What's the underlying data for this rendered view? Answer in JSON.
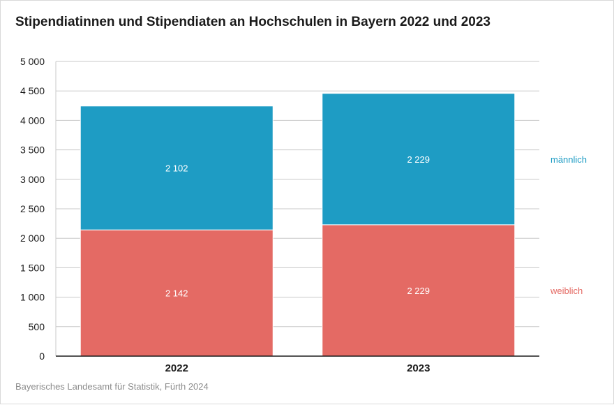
{
  "title": "Stipendiatinnen und Stipendiaten an Hochschulen in Bayern 2022 und 2023",
  "source": "Bayerisches Landesamt für Statistik, Fürth 2024",
  "colors": {
    "weiblich": "#e46a64",
    "maennlich": "#1e9cc4",
    "grid": "#c8c8c8",
    "axis": "#1a1a1a"
  },
  "chart_data": {
    "type": "bar",
    "stacked": true,
    "categories": [
      "2022",
      "2023"
    ],
    "series": [
      {
        "name": "weiblich",
        "values": [
          2142,
          2229
        ],
        "labels": [
          "2 142",
          "2 229"
        ],
        "color": "#e46a64"
      },
      {
        "name": "männlich",
        "values": [
          2102,
          2229
        ],
        "labels": [
          "2 102",
          "2 229"
        ],
        "color": "#1e9cc4"
      }
    ],
    "ylim": [
      0,
      5000
    ],
    "yticks": [
      0,
      500,
      1000,
      1500,
      2000,
      2500,
      3000,
      3500,
      4000,
      4500,
      5000
    ],
    "ytick_labels": [
      "0",
      "500",
      "1 000",
      "1 500",
      "2 000",
      "2 500",
      "3 000",
      "3 500",
      "4 000",
      "4 500",
      "5 000"
    ],
    "xlabel": "",
    "ylabel": "",
    "grid": true,
    "legend": "right"
  }
}
